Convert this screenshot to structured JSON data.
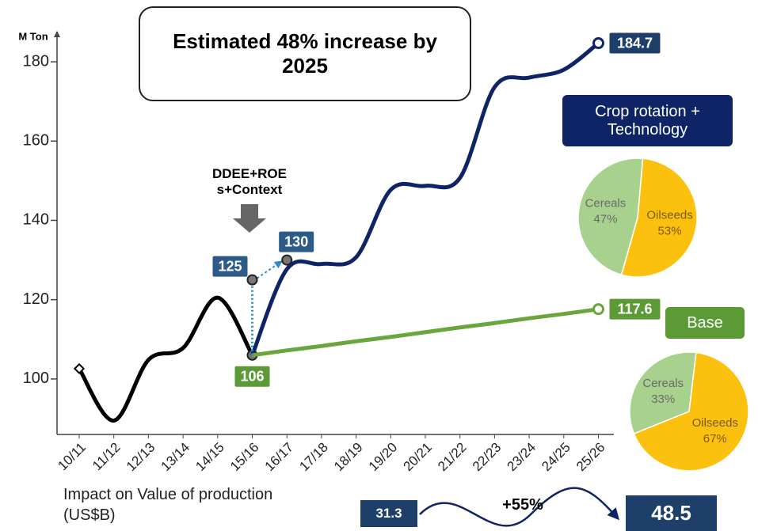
{
  "chart_data": [
    {
      "type": "line",
      "title": "Estimated 48% increase by 2025",
      "y_label": "M Ton",
      "categories": [
        "10/11",
        "11/12",
        "12/13",
        "13/14",
        "14/15",
        "15/16",
        "16/17",
        "17/18",
        "18/19",
        "19/20",
        "20/21",
        "21/22",
        "22/23",
        "23/24",
        "24/25",
        "25/26"
      ],
      "ylim": [
        86,
        187
      ],
      "yticks": [
        100,
        120,
        140,
        160,
        180
      ],
      "grid": false,
      "series": [
        {
          "color": "#000000",
          "style": "smooth",
          "end_labels": "none",
          "values": [
            102.6,
            89.5,
            104.8,
            107.8,
            120.5,
            106,
            null,
            null,
            null,
            null,
            null,
            null,
            null,
            null,
            null,
            null
          ]
        },
        {
          "color": "#0f2466",
          "style": "smooth",
          "end_labels": "last",
          "label_color": "#1f3f6b",
          "values": [
            null,
            null,
            null,
            null,
            null,
            106,
            127.7,
            129,
            130.7,
            147.7,
            148.7,
            150.7,
            173.6,
            176,
            178,
            184.7
          ]
        },
        {
          "color": "#6aa63b",
          "style": "straight",
          "end_labels": "both",
          "label_color": "#5b9a35",
          "values": [
            null,
            null,
            null,
            null,
            null,
            106,
            107.2,
            108.3,
            109.5,
            110.6,
            111.8,
            113,
            114.1,
            115.3,
            116.4,
            117.6
          ]
        },
        {
          "color": "#2e8bc9",
          "style": "points",
          "end_labels": "all",
          "label_color": "#2e5a87",
          "values": [
            null,
            null,
            null,
            null,
            null,
            125,
            130,
            null,
            null,
            null,
            null,
            null,
            null,
            null,
            null,
            null
          ]
        }
      ],
      "annotation": {
        "lines": [
          "DDEE+ROE",
          "s+Context"
        ]
      },
      "impact": {
        "label": "Impact on Value of production (US$B)",
        "from": 31.3,
        "change": "+55%",
        "to": 48.5
      }
    },
    {
      "type": "pie",
      "title": "Crop rotation + Technology",
      "categories": [
        "Oilseeds",
        "Cereals"
      ],
      "values": [
        53,
        47
      ],
      "value_labels": [
        "53%",
        "47%"
      ],
      "colors": [
        "#fcc10f",
        "#a9d18e"
      ]
    },
    {
      "type": "pie",
      "title": "Base",
      "categories": [
        "Cereals",
        "Oilseeds"
      ],
      "values": [
        33,
        67
      ],
      "value_labels": [
        "33%",
        "67%"
      ],
      "colors": [
        "#a9d18e",
        "#fcc10f"
      ]
    }
  ]
}
